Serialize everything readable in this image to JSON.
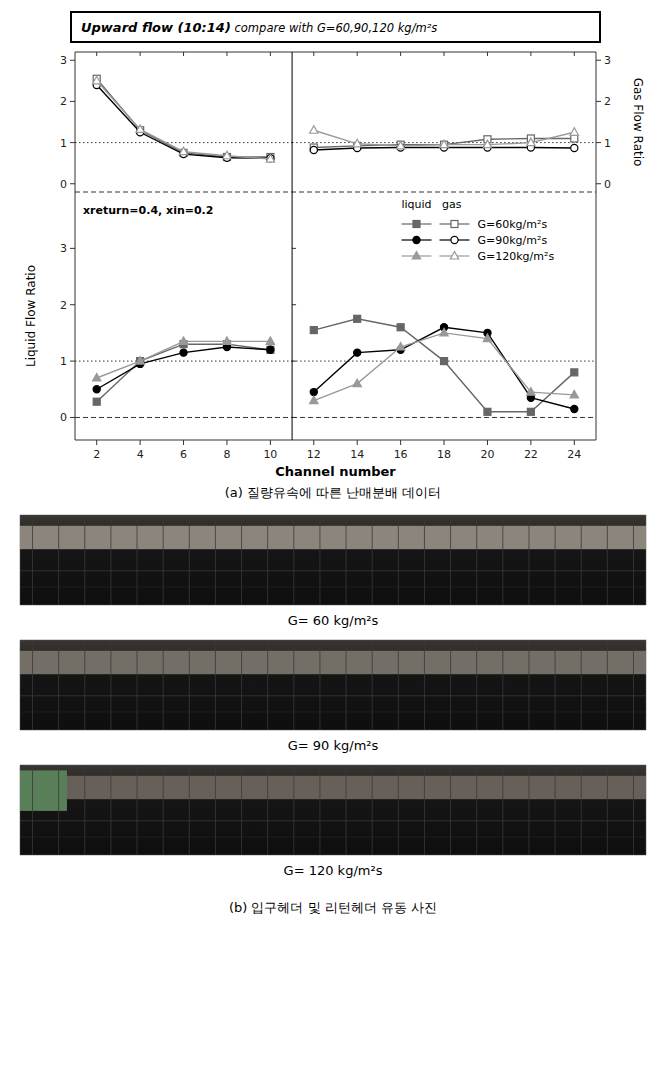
{
  "chart_data": [
    {
      "type": "line",
      "title": "Upward flow (10:14)",
      "subtitle": " compare with G=60,90,120 kg/m²s",
      "xlim": [
        1,
        11
      ],
      "xticks": [
        2,
        4,
        6,
        8,
        10
      ],
      "ylim": [
        -0.2,
        3.2
      ],
      "yticks": [
        0,
        1,
        2,
        3
      ],
      "tick_labels": "y",
      "x": [
        2,
        4,
        6,
        8,
        10
      ],
      "hlines": [
        {
          "value": 1.0,
          "line_style": "dotted"
        }
      ],
      "series": [
        {
          "name": "G=60kg/m²s",
          "color": "#666666",
          "marker": "square-open",
          "line_style": "solid",
          "values": [
            2.55,
            1.3,
            0.75,
            0.65,
            0.65
          ]
        },
        {
          "name": "G=90kg/m²s",
          "color": "#000000",
          "marker": "circle-open",
          "line_style": "solid",
          "values": [
            2.4,
            1.25,
            0.72,
            0.63,
            0.62
          ]
        },
        {
          "name": "G=120kg/m²s",
          "color": "#999999",
          "marker": "triangle-open",
          "line_style": "solid",
          "values": [
            2.5,
            1.32,
            0.78,
            0.68,
            0.6
          ]
        }
      ]
    },
    {
      "type": "line",
      "xlim": [
        11,
        25
      ],
      "xticks": [
        12,
        14,
        16,
        18,
        20,
        22,
        24
      ],
      "y2lim": [
        -0.2,
        3.2
      ],
      "y2ticks": [
        0,
        1,
        2,
        3
      ],
      "ylabel": "Gas Flow Ratio",
      "tick_labels": "y",
      "x": [
        12,
        14,
        16,
        18,
        20,
        22,
        24
      ],
      "hlines": [
        {
          "value": 1.0,
          "line_style": "dotted"
        }
      ],
      "series": [
        {
          "name": "G=60kg/m²s",
          "color": "#666666",
          "marker": "square-open",
          "line_style": "solid",
          "axis": "y2",
          "values": [
            0.88,
            0.92,
            0.95,
            0.95,
            1.08,
            1.1,
            1.1
          ]
        },
        {
          "name": "G=90kg/m²s",
          "color": "#000000",
          "marker": "circle-open",
          "line_style": "solid",
          "axis": "y2",
          "values": [
            0.82,
            0.87,
            0.88,
            0.88,
            0.88,
            0.88,
            0.87
          ]
        },
        {
          "name": "G=120kg/m²s",
          "color": "#999999",
          "marker": "triangle-open",
          "line_style": "solid",
          "axis": "y2",
          "values": [
            1.3,
            0.97,
            0.92,
            0.95,
            0.95,
            1.0,
            1.25
          ]
        }
      ]
    },
    {
      "type": "line",
      "xlim": [
        1,
        11
      ],
      "xticks": [
        2,
        4,
        6,
        8,
        10
      ],
      "ylim": [
        -0.4,
        4.0
      ],
      "yticks": [
        0,
        1,
        2,
        3
      ],
      "xlabel": "Channel number",
      "ylabel": "Liquid Flow Ratio",
      "x": [
        2,
        4,
        6,
        8,
        10
      ],
      "hlines": [
        {
          "value": 1.0,
          "line_style": "dotted"
        },
        {
          "value": 0.0,
          "line_style": "dashed"
        }
      ],
      "annotations": [
        "xreturn=0.4, xin=0.2",
        "(a) 질량유속에 따른 난매분배 데이터",
        "G= 60 kg/m²s",
        "G= 90 kg/m²s",
        "G= 120 kg/m²s",
        "(b) 입구헤더 및 리턴헤더 유동 사진"
      ],
      "series": [
        {
          "name": "G=60kg/m²s",
          "color": "#666666",
          "marker": "square",
          "line_style": "solid",
          "values": [
            0.28,
            1.0,
            1.3,
            1.3,
            1.2
          ]
        },
        {
          "name": "G=90kg/m²s",
          "color": "#000000",
          "marker": "circle",
          "line_style": "solid",
          "values": [
            0.5,
            0.95,
            1.15,
            1.25,
            1.2
          ]
        },
        {
          "name": "G=120kg/m²s",
          "color": "#999999",
          "marker": "triangle",
          "line_style": "solid",
          "values": [
            0.7,
            1.0,
            1.35,
            1.35,
            1.35
          ]
        }
      ]
    },
    {
      "type": "line",
      "xlim": [
        11,
        25
      ],
      "xticks": [
        12,
        14,
        16,
        18,
        20,
        22,
        24
      ],
      "ylim": [
        -0.4,
        4.0
      ],
      "yticks": [
        0,
        1,
        2,
        3
      ],
      "tick_labels": "x",
      "legend": "upper right",
      "x": [
        12,
        14,
        16,
        18,
        20,
        22,
        24
      ],
      "hlines": [
        {
          "value": 1.0,
          "line_style": "dotted"
        },
        {
          "value": 0.0,
          "line_style": "dashed"
        }
      ],
      "annotations": [
        "liquid   gas"
      ],
      "series": [
        {
          "name": "G=60kg/m²s",
          "color": "#666666",
          "marker": "square",
          "line_style": "solid",
          "values": [
            1.55,
            1.75,
            1.6,
            1.0,
            0.1,
            0.1,
            0.8
          ]
        },
        {
          "name": "G=90kg/m²s",
          "color": "#000000",
          "marker": "circle",
          "line_style": "solid",
          "values": [
            0.45,
            1.15,
            1.2,
            1.6,
            1.5,
            0.35,
            0.15
          ]
        },
        {
          "name": "G=120kg/m²s",
          "color": "#999999",
          "marker": "triangle",
          "line_style": "solid",
          "values": [
            0.3,
            0.6,
            1.25,
            1.5,
            1.4,
            0.45,
            0.4
          ]
        }
      ]
    }
  ]
}
